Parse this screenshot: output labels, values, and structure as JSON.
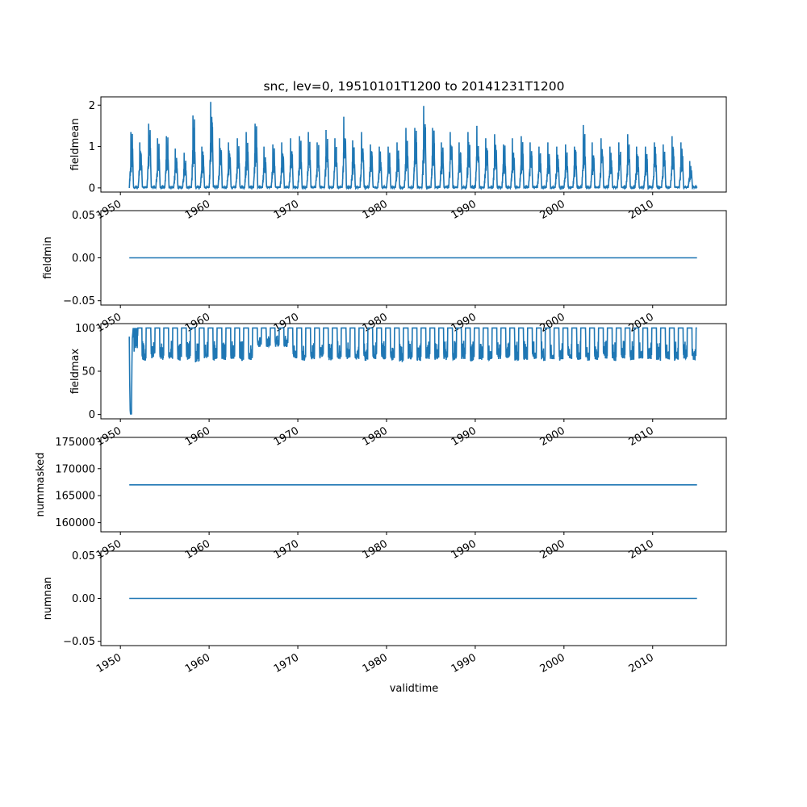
{
  "title": "snc, lev=0, 19510101T1200 to 20141231T1200",
  "xlabel": "validtime",
  "x_ticks": [
    "1950",
    "1960",
    "1970",
    "1980",
    "1990",
    "2000",
    "2010"
  ],
  "x_tick_values": [
    1950,
    1960,
    1970,
    1980,
    1990,
    2000,
    2010
  ],
  "line_color": "#1f77b4",
  "chart_data": [
    {
      "type": "line",
      "ylabel": "fieldmean",
      "xlim": [
        1947.8,
        2018.3
      ],
      "ylim": [
        -0.1,
        2.2
      ],
      "y_ticks": [
        "0",
        "1",
        "2"
      ],
      "y_tick_values": [
        0,
        1,
        2
      ],
      "x_range": [
        1951.0,
        2015.0
      ],
      "pattern": "seasonal",
      "baseline": 0.0,
      "annual_peaks": [
        {
          "year": 1951,
          "value": 1.35
        },
        {
          "year": 1952,
          "value": 1.1
        },
        {
          "year": 1953,
          "value": 1.55
        },
        {
          "year": 1954,
          "value": 1.2
        },
        {
          "year": 1955,
          "value": 1.25
        },
        {
          "year": 1956,
          "value": 0.95
        },
        {
          "year": 1957,
          "value": 0.85
        },
        {
          "year": 1958,
          "value": 1.75
        },
        {
          "year": 1959,
          "value": 1.0
        },
        {
          "year": 1960,
          "value": 2.08
        },
        {
          "year": 1961,
          "value": 1.2
        },
        {
          "year": 1962,
          "value": 1.1
        },
        {
          "year": 1963,
          "value": 1.2
        },
        {
          "year": 1964,
          "value": 1.35
        },
        {
          "year": 1965,
          "value": 1.55
        },
        {
          "year": 1966,
          "value": 1.0
        },
        {
          "year": 1967,
          "value": 1.05
        },
        {
          "year": 1968,
          "value": 1.1
        },
        {
          "year": 1969,
          "value": 1.2
        },
        {
          "year": 1970,
          "value": 1.25
        },
        {
          "year": 1971,
          "value": 1.35
        },
        {
          "year": 1972,
          "value": 1.1
        },
        {
          "year": 1973,
          "value": 1.4
        },
        {
          "year": 1974,
          "value": 1.2
        },
        {
          "year": 1975,
          "value": 1.72
        },
        {
          "year": 1976,
          "value": 1.15
        },
        {
          "year": 1977,
          "value": 1.35
        },
        {
          "year": 1978,
          "value": 1.05
        },
        {
          "year": 1979,
          "value": 1.0
        },
        {
          "year": 1980,
          "value": 1.0
        },
        {
          "year": 1981,
          "value": 1.1
        },
        {
          "year": 1982,
          "value": 1.45
        },
        {
          "year": 1983,
          "value": 1.45
        },
        {
          "year": 1984,
          "value": 1.98
        },
        {
          "year": 1985,
          "value": 1.45
        },
        {
          "year": 1986,
          "value": 1.1
        },
        {
          "year": 1987,
          "value": 1.35
        },
        {
          "year": 1988,
          "value": 1.1
        },
        {
          "year": 1989,
          "value": 1.35
        },
        {
          "year": 1990,
          "value": 1.5
        },
        {
          "year": 1991,
          "value": 1.2
        },
        {
          "year": 1992,
          "value": 1.3
        },
        {
          "year": 1993,
          "value": 1.05
        },
        {
          "year": 1994,
          "value": 1.2
        },
        {
          "year": 1995,
          "value": 1.25
        },
        {
          "year": 1996,
          "value": 1.1
        },
        {
          "year": 1997,
          "value": 1.0
        },
        {
          "year": 1998,
          "value": 1.1
        },
        {
          "year": 1999,
          "value": 1.0
        },
        {
          "year": 2000,
          "value": 1.05
        },
        {
          "year": 2001,
          "value": 1.0
        },
        {
          "year": 2002,
          "value": 1.52
        },
        {
          "year": 2003,
          "value": 1.1
        },
        {
          "year": 2004,
          "value": 1.2
        },
        {
          "year": 2005,
          "value": 1.0
        },
        {
          "year": 2006,
          "value": 1.1
        },
        {
          "year": 2007,
          "value": 1.3
        },
        {
          "year": 2008,
          "value": 1.0
        },
        {
          "year": 2009,
          "value": 1.0
        },
        {
          "year": 2010,
          "value": 1.1
        },
        {
          "year": 2011,
          "value": 1.05
        },
        {
          "year": 2012,
          "value": 1.25
        },
        {
          "year": 2013,
          "value": 1.1
        },
        {
          "year": 2014,
          "value": 0.65
        }
      ]
    },
    {
      "type": "line",
      "ylabel": "fieldmin",
      "xlim": [
        1947.8,
        2018.3
      ],
      "ylim": [
        -0.055,
        0.055
      ],
      "y_ticks": [
        "0.05",
        "0.00",
        "−0.05"
      ],
      "y_tick_values": [
        0.05,
        0.0,
        -0.05
      ],
      "x": [
        1951.0,
        2015.0
      ],
      "y": [
        0.0,
        0.0
      ]
    },
    {
      "type": "line",
      "ylabel": "fieldmax",
      "xlim": [
        1947.8,
        2018.3
      ],
      "ylim": [
        -5,
        105
      ],
      "y_ticks": [
        "100",
        "50",
        "0"
      ],
      "y_tick_values": [
        100,
        50,
        0
      ],
      "x_range": [
        1951.0,
        2015.0
      ],
      "pattern": "seasonal-max",
      "ceiling": 100,
      "annual_minima": [
        {
          "year": 1951,
          "value": 0
        },
        {
          "year": 1952,
          "value": 62
        },
        {
          "year": 1953,
          "value": 65
        },
        {
          "year": 1954,
          "value": 63
        },
        {
          "year": 1955,
          "value": 64
        },
        {
          "year": 1956,
          "value": 62
        },
        {
          "year": 1957,
          "value": 63
        },
        {
          "year": 1958,
          "value": 60
        },
        {
          "year": 1959,
          "value": 64
        },
        {
          "year": 1960,
          "value": 62
        },
        {
          "year": 1961,
          "value": 63
        },
        {
          "year": 1962,
          "value": 64
        },
        {
          "year": 1963,
          "value": 62
        },
        {
          "year": 1964,
          "value": 63
        },
        {
          "year": 1965,
          "value": 78
        },
        {
          "year": 1966,
          "value": 78
        },
        {
          "year": 1967,
          "value": 78
        },
        {
          "year": 1968,
          "value": 78
        },
        {
          "year": 1969,
          "value": 64
        },
        {
          "year": 1970,
          "value": 62
        },
        {
          "year": 1971,
          "value": 63
        },
        {
          "year": 1972,
          "value": 64
        },
        {
          "year": 1973,
          "value": 62
        },
        {
          "year": 1974,
          "value": 63
        },
        {
          "year": 1975,
          "value": 63
        },
        {
          "year": 1976,
          "value": 63
        },
        {
          "year": 1977,
          "value": 62
        },
        {
          "year": 1978,
          "value": 64
        },
        {
          "year": 1979,
          "value": 63
        },
        {
          "year": 1980,
          "value": 62
        },
        {
          "year": 1981,
          "value": 60
        },
        {
          "year": 1982,
          "value": 63
        },
        {
          "year": 1983,
          "value": 62
        },
        {
          "year": 1984,
          "value": 64
        },
        {
          "year": 1985,
          "value": 63
        },
        {
          "year": 1986,
          "value": 62
        },
        {
          "year": 1987,
          "value": 63
        },
        {
          "year": 1988,
          "value": 64
        },
        {
          "year": 1989,
          "value": 62
        },
        {
          "year": 1990,
          "value": 63
        },
        {
          "year": 1991,
          "value": 62
        },
        {
          "year": 1992,
          "value": 64
        },
        {
          "year": 1993,
          "value": 63
        },
        {
          "year": 1994,
          "value": 62
        },
        {
          "year": 1995,
          "value": 63
        },
        {
          "year": 1996,
          "value": 64
        },
        {
          "year": 1997,
          "value": 62
        },
        {
          "year": 1998,
          "value": 63
        },
        {
          "year": 1999,
          "value": 62
        },
        {
          "year": 2000,
          "value": 64
        },
        {
          "year": 2001,
          "value": 63
        },
        {
          "year": 2002,
          "value": 62
        },
        {
          "year": 2003,
          "value": 63
        },
        {
          "year": 2004,
          "value": 64
        },
        {
          "year": 2005,
          "value": 62
        },
        {
          "year": 2006,
          "value": 63
        },
        {
          "year": 2007,
          "value": 62
        },
        {
          "year": 2008,
          "value": 64
        },
        {
          "year": 2009,
          "value": 63
        },
        {
          "year": 2010,
          "value": 62
        },
        {
          "year": 2011,
          "value": 63
        },
        {
          "year": 2012,
          "value": 62
        },
        {
          "year": 2013,
          "value": 64
        },
        {
          "year": 2014,
          "value": 63
        }
      ]
    },
    {
      "type": "line",
      "ylabel": "nummasked",
      "xlim": [
        1947.8,
        2018.3
      ],
      "ylim": [
        158300,
        175800
      ],
      "y_ticks": [
        "175000",
        "170000",
        "165000",
        "160000"
      ],
      "y_tick_values": [
        175000,
        170000,
        165000,
        160000
      ],
      "x": [
        1951.0,
        2015.0
      ],
      "y": [
        167000,
        167000
      ]
    },
    {
      "type": "line",
      "ylabel": "numnan",
      "xlim": [
        1947.8,
        2018.3
      ],
      "ylim": [
        -0.055,
        0.055
      ],
      "y_ticks": [
        "0.05",
        "0.00",
        "−0.05"
      ],
      "y_tick_values": [
        0.05,
        0.0,
        -0.05
      ],
      "x": [
        1951.0,
        2015.0
      ],
      "y": [
        0.0,
        0.0
      ]
    }
  ]
}
